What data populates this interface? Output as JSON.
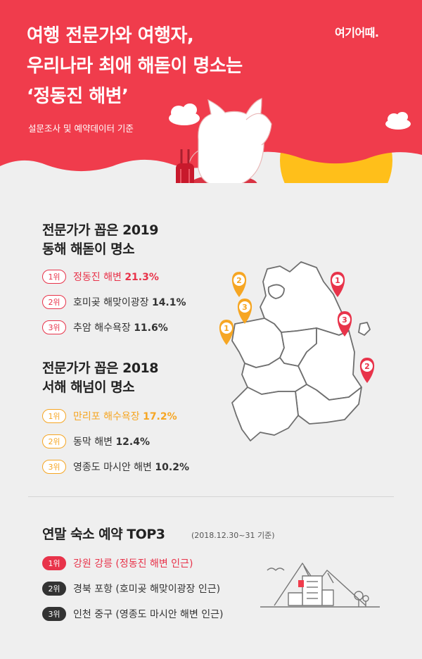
{
  "header": {
    "title_lines": [
      "여행 전문가와 여행자,",
      "우리나라 최애 해돋이 명소는",
      "‘정동진 해변’"
    ],
    "subtitle": "설문조사 및 예약데이터 기준",
    "logo": "여기어때.",
    "colors": {
      "background": "#f03c4c",
      "sun": "#ffbf1a"
    }
  },
  "east_sea": {
    "title_lines": [
      "전문가가 꼽은 2019",
      "동해 해돋이 명소"
    ],
    "items": [
      {
        "rank": "1위",
        "name": "정동진 해변",
        "pct": "21.3%"
      },
      {
        "rank": "2위",
        "name": "호미곶 해맞이광장",
        "pct": "14.1%"
      },
      {
        "rank": "3위",
        "name": "추암 해수욕장",
        "pct": "11.6%"
      }
    ]
  },
  "west_sea": {
    "title_lines": [
      "전문가가 꼽은 2018",
      "서해 해넘이 명소"
    ],
    "items": [
      {
        "rank": "1위",
        "name": "만리포 해수욕장",
        "pct": "17.2%"
      },
      {
        "rank": "2위",
        "name": "동막 해변",
        "pct": "12.4%"
      },
      {
        "rank": "3위",
        "name": "영종도 마시안 해변",
        "pct": "10.2%"
      }
    ]
  },
  "booking": {
    "title": "연말 숙소 예약 TOP3",
    "date": "(2018.12.30~31 기준)",
    "items": [
      {
        "rank": "1위",
        "text": "강원 강릉 (정동진 해변 인근)"
      },
      {
        "rank": "2위",
        "text": "경북 포항 (호미곶 해맞이광장 인근)"
      },
      {
        "rank": "3위",
        "text": "인천 중구 (영종도 마시안 해변 인근)"
      }
    ]
  },
  "map": {
    "east_pins": [
      "1",
      "3",
      "2"
    ],
    "west_pins": [
      "2",
      "3",
      "1"
    ],
    "colors": {
      "east": "#e8334a",
      "west": "#f6a623"
    }
  }
}
